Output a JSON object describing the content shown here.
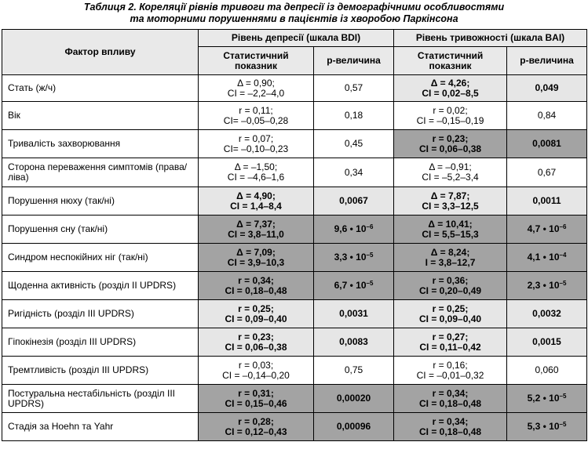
{
  "caption": {
    "line1": "Таблиця 2. Кореляції рівнів тривоги та депресії із демографічними особливостями",
    "line2": "та моторними порушеннями в пацієнтів із хворобою Паркінсона"
  },
  "headers": {
    "factor": "Фактор впливу",
    "depression": "Рівень депресії (шкала BDI)",
    "anxiety": "Рівень тривожності (шкала BAI)",
    "stat": "Статистичний показник",
    "p": "p-величина"
  },
  "rows": [
    {
      "factor": "Стать (ж/ч)",
      "d_stat1": "Δ = 0,90;",
      "d_stat2": "CI = –2,2–4,0",
      "d_p": "0,57",
      "d_p_exp": "",
      "a_stat1": "Δ = 4,26;",
      "a_stat2": "CI = 0,02–8,5",
      "a_p": "0,049",
      "a_p_exp": ""
    },
    {
      "factor": "Вік",
      "d_stat1": "r = 0,11;",
      "d_stat2": "CI= –0,05–0,28",
      "d_p": "0,18",
      "d_p_exp": "",
      "a_stat1": "r = 0,02;",
      "a_stat2": "CI = –0,15–0,19",
      "a_p": "0,84",
      "a_p_exp": ""
    },
    {
      "factor": "Тривалість захворювання",
      "d_stat1": "r = 0,07;",
      "d_stat2": "CI= –0,10–0,23",
      "d_p": "0,45",
      "d_p_exp": "",
      "a_stat1": "r = 0,23;",
      "a_stat2": "CI = 0,06–0,38",
      "a_p": "0,0081",
      "a_p_exp": ""
    },
    {
      "factor": "Сторона переваження симптомів (права/ліва)",
      "d_stat1": "Δ = –1,50;",
      "d_stat2": "CI = –4,6–1,6",
      "d_p": "0,34",
      "d_p_exp": "",
      "a_stat1": "Δ = –0,91;",
      "a_stat2": "CI = –5,2–3,4",
      "a_p": "0,67",
      "a_p_exp": ""
    },
    {
      "factor": "Порушення нюху (так/ні)",
      "d_stat1": "Δ = 4,90;",
      "d_stat2": "CI = 1,4–8,4",
      "d_p": "0,0067",
      "d_p_exp": "",
      "a_stat1": "Δ = 7,87;",
      "a_stat2": "CI = 3,3–12,5",
      "a_p": "0,0011",
      "a_p_exp": ""
    },
    {
      "factor": "Порушення сну (так/ні)",
      "d_stat1": "Δ = 7,37;",
      "d_stat2": "CI = 3,8–11,0",
      "d_p": "9,6 • 10",
      "d_p_exp": "–6",
      "a_stat1": "Δ = 10,41;",
      "a_stat2": "CI = 5,5–15,3",
      "a_p": "4,7 • 10",
      "a_p_exp": "–6"
    },
    {
      "factor": "Синдром неспокійних ніг (так/ні)",
      "d_stat1": "Δ = 7,09;",
      "d_stat2": "CI = 3,9–10,3",
      "d_p": "3,3 • 10",
      "d_p_exp": "–5",
      "a_stat1": "Δ = 8,24;",
      "a_stat2": "I = 3,8–12,7",
      "a_p": "4,1 • 10",
      "a_p_exp": "–4"
    },
    {
      "factor": "Щоденна активність (розділ II UPDRS)",
      "d_stat1": "r = 0,34;",
      "d_stat2": "CI = 0,18–0,48",
      "d_p": "6,7 • 10",
      "d_p_exp": "–5",
      "a_stat1": "r = 0,36;",
      "a_stat2": "CI = 0,20–0,49",
      "a_p": "2,3 • 10",
      "a_p_exp": "–5"
    },
    {
      "factor": "Ригідність (розділ III UPDRS)",
      "d_stat1": "r = 0,25;",
      "d_stat2": "CI = 0,09–0,40",
      "d_p": "0,0031",
      "d_p_exp": "",
      "a_stat1": "r = 0,25;",
      "a_stat2": "CI = 0,09–0,40",
      "a_p": "0,0032",
      "a_p_exp": ""
    },
    {
      "factor": "Гіпокінезія (розділ III UPDRS)",
      "d_stat1": "r = 0,23;",
      "d_stat2": "CI = 0,06–0,38",
      "d_p": "0,0083",
      "d_p_exp": "",
      "a_stat1": "r = 0,27;",
      "a_stat2": "CI = 0,11–0,42",
      "a_p": "0,0015",
      "a_p_exp": ""
    },
    {
      "factor": "Тремтливість (розділ III UPDRS)",
      "d_stat1": "r = 0,03;",
      "d_stat2": "CI = –0,14–0,20",
      "d_p": "0,75",
      "d_p_exp": "",
      "a_stat1": "r = 0,16;",
      "a_stat2": "CI = –0,01–0,32",
      "a_p": "0,060",
      "a_p_exp": ""
    },
    {
      "factor": "Постуральна нестабільність (розділ III UPDRS)",
      "d_stat1": "r = 0,31;",
      "d_stat2": "CI = 0,15–0,46",
      "d_p": "0,00020",
      "d_p_exp": "",
      "a_stat1": "r = 0,34;",
      "a_stat2": "CI = 0,18–0,48",
      "a_p": "5,2 • 10",
      "a_p_exp": "–5"
    },
    {
      "factor": "Стадія за Hoehn та Yahr",
      "d_stat1": "r = 0,28;",
      "d_stat2": "CI = 0,12–0,43",
      "d_p": "0,00096",
      "d_p_exp": "",
      "a_stat1": "r = 0,34;",
      "a_stat2": "CI = 0,18–0,48",
      "a_p": "5,3 • 10",
      "a_p_exp": "–5"
    }
  ]
}
